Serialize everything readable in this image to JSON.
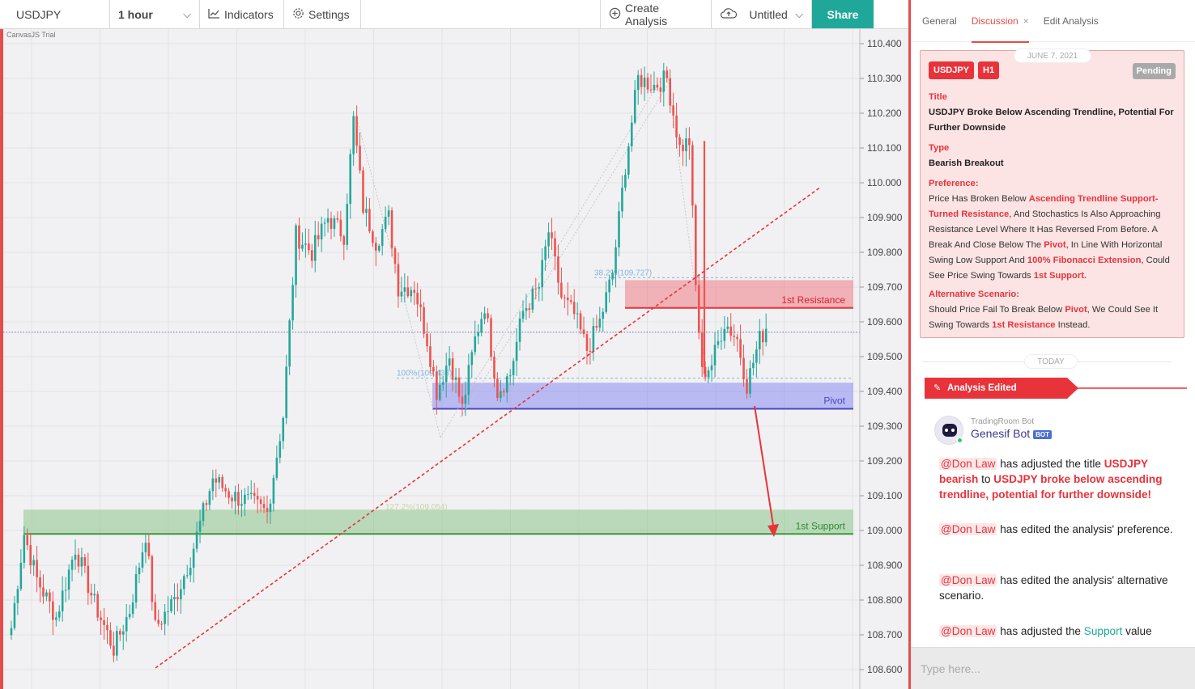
{
  "toolbar": {
    "symbol": "USDJPY",
    "interval": "1 hour",
    "indicators": "Indicators",
    "settings": "Settings",
    "create_analysis": "Create Analysis",
    "untitled": "Untitled",
    "share": "Share"
  },
  "chart": {
    "credit": "CanvasJS Trial",
    "accent": "#e74c4c",
    "bull_color": "#26a69a",
    "bear_color": "#ef5350",
    "price_axis": [
      "110.400",
      "110.300",
      "110.200",
      "110.100",
      "110.000",
      "109.900",
      "109.800",
      "109.700",
      "109.600",
      "109.500",
      "109.400",
      "109.300",
      "109.200",
      "109.100",
      "109.000",
      "108.900",
      "108.800",
      "108.700",
      "108.600"
    ],
    "zones": {
      "resistance": {
        "label": "1st Resistance",
        "from": 109.64,
        "to": 109.72
      },
      "pivot": {
        "label": "Pivot",
        "from": 109.35,
        "to": 109.425
      },
      "support": {
        "label": "1st Support",
        "from": 108.99,
        "to": 109.06
      }
    },
    "fib_labels": {
      "f382": "38.2%(109.727)",
      "f100": "100%(109.438)",
      "f1272": "127.2%(109.054)"
    }
  },
  "chart_data": {
    "type": "candlestick",
    "title": "USDJPY",
    "interval": "1 hour",
    "ylim": [
      108.57,
      110.42
    ],
    "ticks": [
      110.4,
      110.3,
      110.2,
      110.1,
      110.0,
      109.9,
      109.8,
      109.7,
      109.6,
      109.5,
      109.4,
      109.3,
      109.2,
      109.1,
      109.0,
      108.9,
      108.8,
      108.7,
      108.6
    ],
    "anchors": [
      [
        0,
        108.72
      ],
      [
        4,
        108.99
      ],
      [
        8,
        108.86
      ],
      [
        14,
        108.75
      ],
      [
        20,
        108.95
      ],
      [
        26,
        108.79
      ],
      [
        32,
        108.66
      ],
      [
        37,
        108.77
      ],
      [
        42,
        108.99
      ],
      [
        45,
        108.72
      ],
      [
        51,
        108.8
      ],
      [
        56,
        108.92
      ],
      [
        63,
        109.15
      ],
      [
        69,
        109.1
      ],
      [
        75,
        109.08
      ],
      [
        80,
        109.05
      ],
      [
        85,
        109.33
      ],
      [
        89,
        109.85
      ],
      [
        94,
        109.8
      ],
      [
        99,
        109.9
      ],
      [
        104,
        109.85
      ],
      [
        107,
        110.18
      ],
      [
        110,
        109.93
      ],
      [
        114,
        109.83
      ],
      [
        118,
        109.9
      ],
      [
        121,
        109.7
      ],
      [
        126,
        109.7
      ],
      [
        130,
        109.55
      ],
      [
        133,
        109.4
      ],
      [
        137,
        109.5
      ],
      [
        141,
        109.35
      ],
      [
        145,
        109.55
      ],
      [
        148,
        109.65
      ],
      [
        152,
        109.4
      ],
      [
        156,
        109.45
      ],
      [
        160,
        109.63
      ],
      [
        165,
        109.7
      ],
      [
        168,
        109.86
      ],
      [
        172,
        109.67
      ],
      [
        176,
        109.62
      ],
      [
        180,
        109.52
      ],
      [
        184,
        109.6
      ],
      [
        188,
        109.74
      ],
      [
        192,
        110.05
      ],
      [
        196,
        110.3
      ],
      [
        201,
        110.28
      ],
      [
        205,
        110.3
      ],
      [
        209,
        110.1
      ],
      [
        212,
        110.12
      ],
      [
        214,
        109.7
      ],
      [
        216,
        109.45
      ],
      [
        219,
        109.48
      ],
      [
        223,
        109.6
      ],
      [
        227,
        109.55
      ],
      [
        230,
        109.42
      ],
      [
        234,
        109.55
      ],
      [
        236,
        109.58
      ]
    ]
  },
  "panel": {
    "tabs": [
      {
        "label": "General"
      },
      {
        "label": "Discussion"
      },
      {
        "label": "Edit Analysis"
      }
    ],
    "tab_close": "×",
    "card": {
      "date": "JUNE 7, 2021",
      "symbol_badge": "USDJPY",
      "tf_badge": "H1",
      "status": "Pending",
      "title_label": "Title",
      "title": "USDJPY Broke Below Ascending Trendline, Potential For Further Downside",
      "type_label": "Type",
      "type": "Bearish Breakout",
      "pref_label": "Preference:",
      "pref": {
        "p1": "Price Has Broken Below ",
        "h1": "Ascending Trendline Support-Turned Resistance",
        "p2": ", And Stochastics Is Also Approaching Resistance Level Where It Has Reversed From Before. A Break And Close Below The ",
        "h2": "Pivot",
        "p3": ", In Line With Horizontal Swing Low Support And ",
        "h3": "100% Fibonacci Extension",
        "p4": ", Could See Price Swing Towards ",
        "h4": "1st Support.",
        "p5": ""
      },
      "alt_label": "Alternative Scenario:",
      "alt": {
        "p1": "Should Price Fail To Break Below ",
        "h1": "Pivot",
        "p2": ", We Could See It Swing Towards ",
        "h2": "1st Resistance",
        "p3": " Instead."
      }
    },
    "today": "TODAY",
    "edited_label": "Analysis Edited",
    "bot": {
      "handle": "TradingRoom Bot",
      "name": "Genesif Bot",
      "tag": "BOT"
    },
    "messages": {
      "m1": {
        "mention": "@Don Law",
        "t1": " has adjusted the title ",
        "r1": "USDJPY bearish",
        "t2": " to ",
        "r2": "USDJPY broke below ascending trendline, potential for further downside!"
      },
      "m2": {
        "mention": "@Don Law",
        "t1": " has edited the analysis' preference."
      },
      "m3": {
        "mention": "@Don Law",
        "t1": " has edited the analysis' alternative scenario."
      },
      "m4": {
        "mention": "@Don Law",
        "t1": " has adjusted the ",
        "g1": "Support",
        "t2": " value"
      }
    },
    "input_placeholder": "Type here..."
  }
}
